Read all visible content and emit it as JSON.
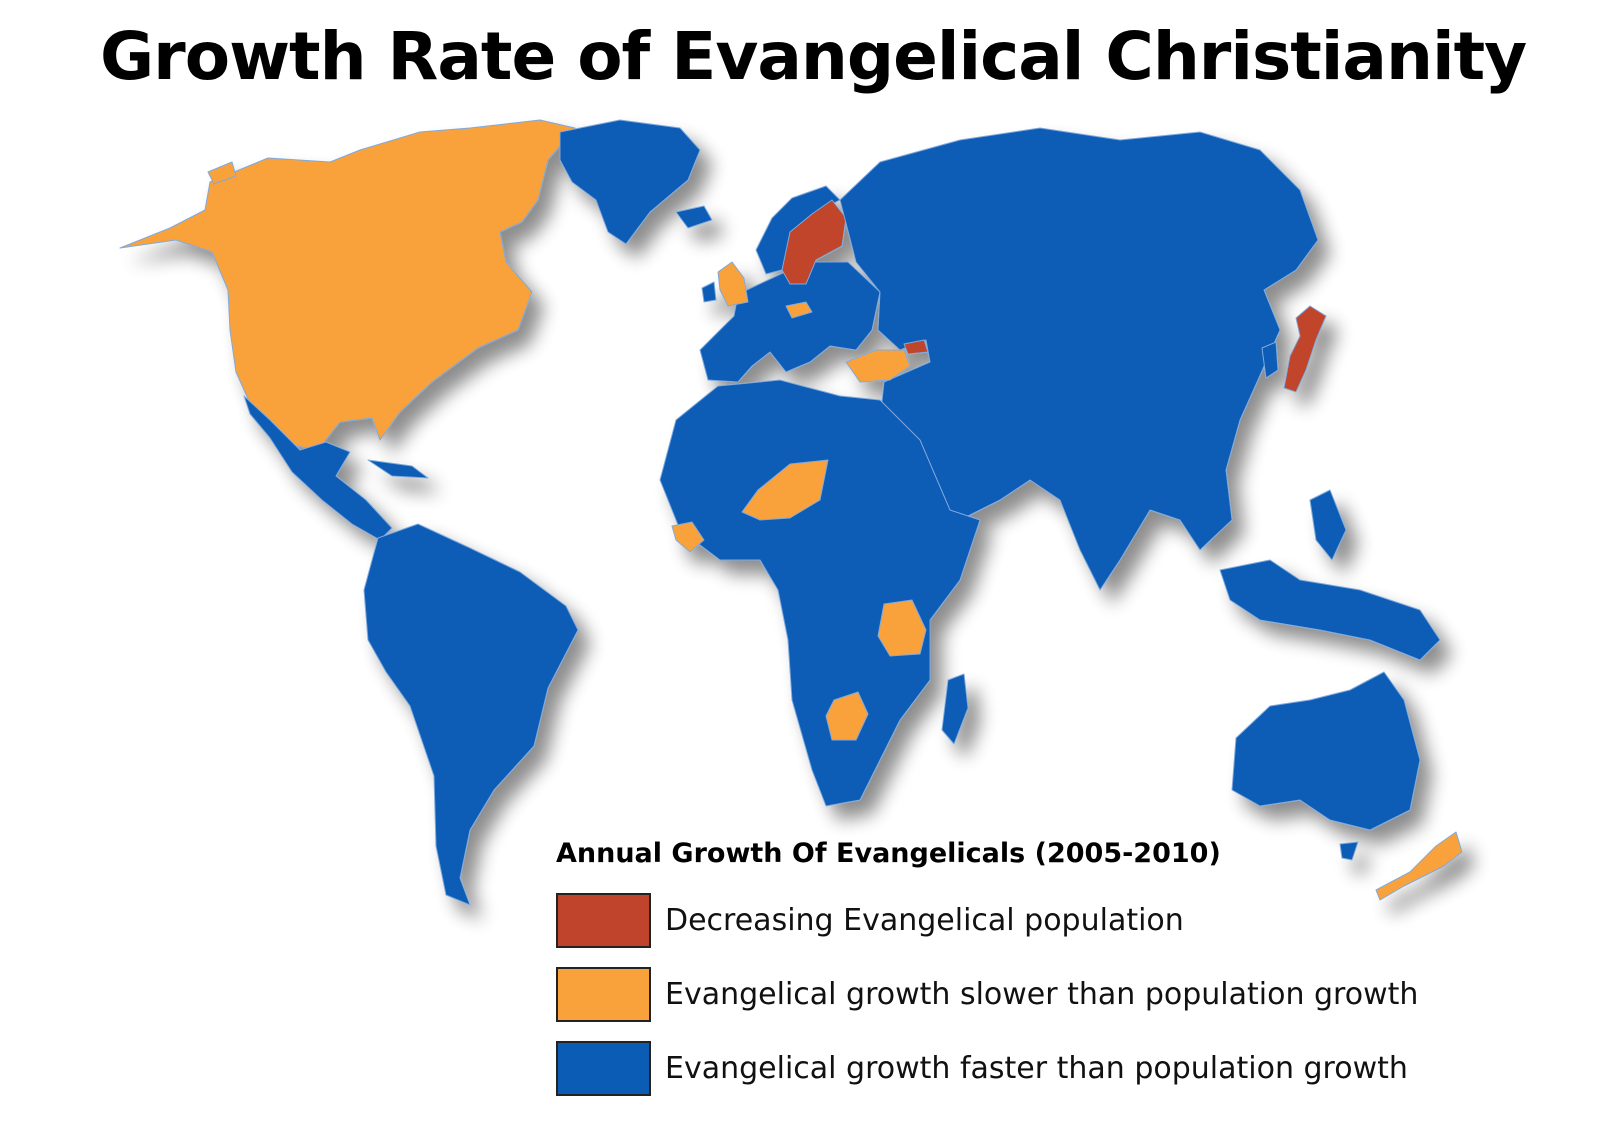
{
  "title": "Growth Rate of Evangelical Christianity",
  "colors": {
    "decreasing": "#c0442c",
    "slower": "#f9a23b",
    "faster": "#0a5cb5",
    "border": "#7fa9dc"
  },
  "legend": {
    "title": "Annual Growth Of Evangelicals (2005-2010)",
    "items": [
      {
        "key": "decreasing",
        "label": "Decreasing Evangelical population"
      },
      {
        "key": "slower",
        "label": "Evangelical growth slower than population growth"
      },
      {
        "key": "faster",
        "label": "Evangelical growth faster than population growth"
      }
    ]
  },
  "regions": [
    {
      "name": "North America (USA & Canada)",
      "category": "slower"
    },
    {
      "name": "Greenland",
      "category": "faster"
    },
    {
      "name": "Mexico & Central America",
      "category": "faster"
    },
    {
      "name": "South America",
      "category": "faster"
    },
    {
      "name": "United Kingdom",
      "category": "slower"
    },
    {
      "name": "Scandinavia (Sweden & Finland)",
      "category": "decreasing"
    },
    {
      "name": "Europe",
      "category": "faster"
    },
    {
      "name": "Czech Republic",
      "category": "slower"
    },
    {
      "name": "Turkey",
      "category": "slower"
    },
    {
      "name": "Georgia",
      "category": "decreasing"
    },
    {
      "name": "Russia & Asia",
      "category": "faster"
    },
    {
      "name": "Japan",
      "category": "decreasing"
    },
    {
      "name": "Africa",
      "category": "faster"
    },
    {
      "name": "Niger",
      "category": "slower"
    },
    {
      "name": "Guinea region",
      "category": "slower"
    },
    {
      "name": "Tanzania",
      "category": "slower"
    },
    {
      "name": "Botswana",
      "category": "slower"
    },
    {
      "name": "Madagascar",
      "category": "faster"
    },
    {
      "name": "Southeast Asia & Indonesia",
      "category": "faster"
    },
    {
      "name": "Australia",
      "category": "faster"
    },
    {
      "name": "New Zealand",
      "category": "slower"
    }
  ]
}
